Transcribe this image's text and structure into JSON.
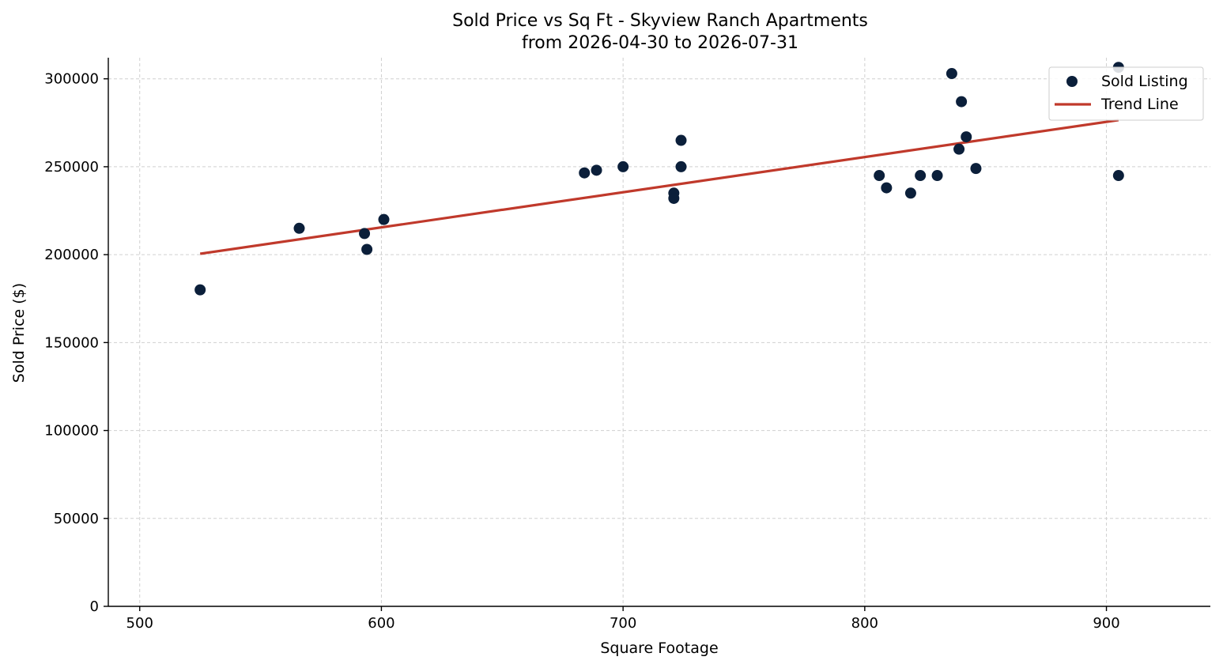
{
  "chart_data": {
    "type": "scatter",
    "title": "Sold Price vs Sq Ft - Skyview Ranch Apartments",
    "subtitle": "from 2026-04-30 to 2026-07-31",
    "xlabel": "Square Footage",
    "ylabel": "Sold Price ($)",
    "xlim": [
      487,
      943
    ],
    "ylim": [
      0,
      312000
    ],
    "xticks": [
      500,
      600,
      700,
      800,
      900
    ],
    "yticks": [
      0,
      50000,
      100000,
      150000,
      200000,
      250000,
      300000
    ],
    "xtick_labels": [
      "500",
      "600",
      "700",
      "800",
      "900"
    ],
    "ytick_labels": [
      "0",
      "50000",
      "100000",
      "150000",
      "200000",
      "250000",
      "300000"
    ],
    "grid": true,
    "legend_position": "top-right",
    "series": [
      {
        "name": "Sold Listing",
        "type": "scatter",
        "color": "#0b1f3a",
        "points": [
          {
            "x": 525,
            "y": 180000
          },
          {
            "x": 566,
            "y": 215000
          },
          {
            "x": 593,
            "y": 212000
          },
          {
            "x": 594,
            "y": 203000
          },
          {
            "x": 601,
            "y": 220000
          },
          {
            "x": 684,
            "y": 246500
          },
          {
            "x": 689,
            "y": 248000
          },
          {
            "x": 700,
            "y": 250000
          },
          {
            "x": 721,
            "y": 235000
          },
          {
            "x": 721,
            "y": 232000
          },
          {
            "x": 724,
            "y": 265000
          },
          {
            "x": 724,
            "y": 250000
          },
          {
            "x": 806,
            "y": 245000
          },
          {
            "x": 809,
            "y": 238000
          },
          {
            "x": 819,
            "y": 235000
          },
          {
            "x": 823,
            "y": 245000
          },
          {
            "x": 830,
            "y": 245000
          },
          {
            "x": 836,
            "y": 303000
          },
          {
            "x": 839,
            "y": 260000
          },
          {
            "x": 840,
            "y": 287000
          },
          {
            "x": 842,
            "y": 267000
          },
          {
            "x": 846,
            "y": 249000
          },
          {
            "x": 905,
            "y": 306500
          },
          {
            "x": 905,
            "y": 245000
          }
        ]
      },
      {
        "name": "Trend Line",
        "type": "line",
        "color": "#c0392b",
        "points": [
          {
            "x": 525,
            "y": 200500
          },
          {
            "x": 905,
            "y": 276500
          }
        ]
      }
    ]
  }
}
